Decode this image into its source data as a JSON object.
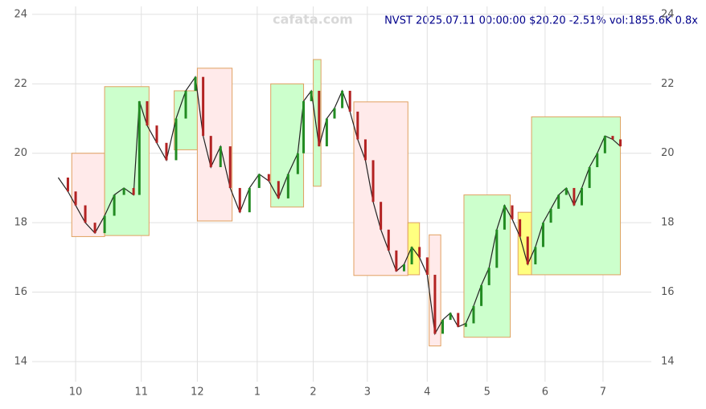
{
  "chart_data": {
    "type": "line",
    "title": "NVST 2025.07.11 00:00:00 $20.20 -2.51% vol:1855.6K 0.8x",
    "watermark": "cafata.com",
    "x": [
      -9,
      -4,
      0,
      5,
      10,
      15,
      20,
      25,
      30,
      33,
      37,
      42,
      47,
      52,
      57,
      62,
      66,
      70,
      75,
      80,
      85,
      90,
      95,
      100,
      105,
      110,
      115,
      118,
      122,
      126,
      130,
      134,
      138,
      142,
      146,
      150,
      154,
      158,
      162,
      166,
      170,
      174,
      178,
      182,
      186,
      190,
      194,
      198,
      202,
      206,
      210,
      214,
      218,
      222,
      226,
      230,
      234,
      238,
      242,
      246,
      250,
      254,
      258,
      262,
      266,
      270,
      274,
      278,
      282
    ],
    "series": [
      {
        "name": "NVST",
        "color": "#222222",
        "values": [
          19.3,
          18.9,
          18.5,
          18.0,
          17.7,
          18.2,
          18.8,
          19.0,
          18.8,
          21.5,
          20.8,
          20.3,
          19.8,
          21.0,
          21.8,
          22.2,
          20.5,
          19.6,
          20.2,
          19.0,
          18.3,
          19.0,
          19.4,
          19.2,
          18.7,
          19.4,
          20.0,
          21.5,
          21.8,
          20.2,
          21.0,
          21.3,
          21.8,
          21.2,
          20.4,
          19.8,
          18.6,
          17.8,
          17.2,
          16.6,
          16.8,
          17.3,
          17.0,
          16.5,
          14.8,
          15.2,
          15.4,
          15.0,
          15.1,
          15.6,
          16.2,
          16.7,
          17.8,
          18.5,
          18.1,
          17.6,
          16.8,
          17.3,
          18.0,
          18.4,
          18.8,
          19.0,
          18.5,
          19.0,
          19.6,
          20.0,
          20.5,
          20.4,
          20.2
        ]
      }
    ],
    "boxes": [
      {
        "x": [
          -2,
          15
        ],
        "y": [
          17.6,
          20.0
        ],
        "color": "#ffeaea"
      },
      {
        "x": [
          15,
          38
        ],
        "y": [
          17.63,
          21.92
        ],
        "color": "#ccffcc"
      },
      {
        "x": [
          51,
          63
        ],
        "y": [
          20.1,
          21.8
        ],
        "color": "#ccffcc"
      },
      {
        "x": [
          63,
          81
        ],
        "y": [
          18.05,
          22.45
        ],
        "color": "#ffeaea"
      },
      {
        "x": [
          101,
          118
        ],
        "y": [
          18.45,
          22.0
        ],
        "color": "#ccffcc"
      },
      {
        "x": [
          123,
          127
        ],
        "y": [
          19.05,
          22.7
        ],
        "color": "#ccffcc"
      },
      {
        "x": [
          144,
          172
        ],
        "y": [
          16.48,
          21.48
        ],
        "color": "#ffeaea"
      },
      {
        "x": [
          172,
          178
        ],
        "y": [
          16.5,
          18.0
        ],
        "color": "#ffff80"
      },
      {
        "x": [
          183,
          189
        ],
        "y": [
          14.45,
          17.65
        ],
        "color": "#ffeaea"
      },
      {
        "x": [
          201,
          225
        ],
        "y": [
          14.7,
          18.8
        ],
        "color": "#ccffcc"
      },
      {
        "x": [
          229,
          236
        ],
        "y": [
          16.5,
          18.3
        ],
        "color": "#ffff80"
      },
      {
        "x": [
          236,
          282
        ],
        "y": [
          16.5,
          21.05
        ],
        "color": "#ccffcc"
      }
    ],
    "xlim": [
      -22.5,
      298
    ],
    "ylim": [
      13.42,
      24.23
    ],
    "xticks": [
      {
        "value": 0,
        "label": "10"
      },
      {
        "value": 34,
        "label": "11"
      },
      {
        "value": 63,
        "label": "12"
      },
      {
        "value": 94,
        "label": "1"
      },
      {
        "value": 123,
        "label": "2"
      },
      {
        "value": 151,
        "label": "3"
      },
      {
        "value": 182,
        "label": "4"
      },
      {
        "value": 213,
        "label": "5"
      },
      {
        "value": 243,
        "label": "6"
      },
      {
        "value": 273,
        "label": "7"
      }
    ],
    "yticks": [
      14,
      16,
      18,
      20,
      22,
      24
    ],
    "grid": true
  }
}
